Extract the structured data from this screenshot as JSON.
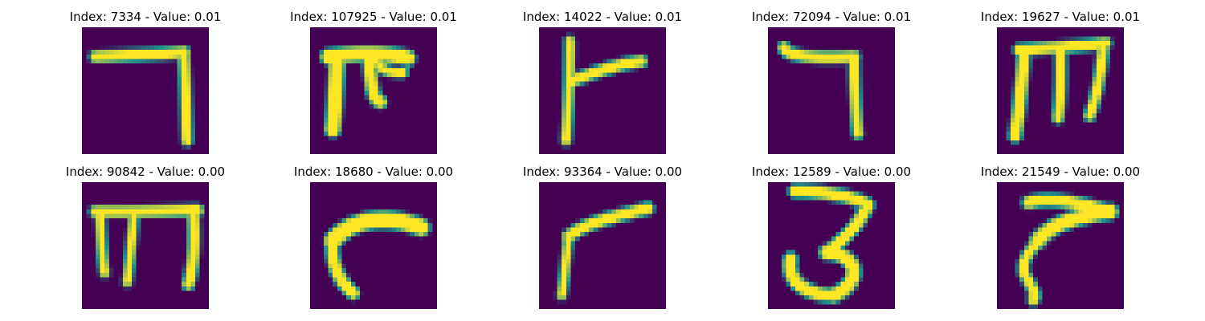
{
  "colors": {
    "background": "#440154",
    "mid": "#21918c",
    "stroke": "#fde725"
  },
  "samples": [
    {
      "title": "Index: 7334 - Value: 0.01",
      "strokes": [
        {
          "w": 2.2,
          "pts": [
            [
              3,
              6.5
            ],
            [
              10,
              6.2
            ],
            [
              17,
              6
            ],
            [
              22.5,
              5.5
            ]
          ]
        },
        {
          "w": 2.0,
          "pts": [
            [
              22.5,
              5.5
            ],
            [
              22.8,
              12
            ],
            [
              23,
              18
            ],
            [
              23.2,
              25
            ]
          ]
        }
      ]
    },
    {
      "title": "Index: 107925 - Value: 0.01",
      "strokes": [
        {
          "w": 3.0,
          "pts": [
            [
              4,
              6.5
            ],
            [
              10,
              5.7
            ],
            [
              16,
              5.5
            ],
            [
              21.5,
              6.8
            ]
          ]
        },
        {
          "w": 3.0,
          "pts": [
            [
              6,
              6.5
            ],
            [
              5.7,
              12
            ],
            [
              5.5,
              18
            ],
            [
              5,
              22.5
            ]
          ]
        },
        {
          "w": 2.4,
          "pts": [
            [
              13,
              7
            ],
            [
              13.5,
              11
            ],
            [
              13.5,
              16
            ],
            [
              15.5,
              16.5
            ]
          ]
        },
        {
          "w": 1.8,
          "pts": [
            [
              14.5,
              7
            ],
            [
              15.5,
              9.5
            ],
            [
              17,
              10
            ],
            [
              20.5,
              10
            ]
          ]
        }
      ]
    },
    {
      "title": "Index: 14022 - Value: 0.01",
      "strokes": [
        {
          "w": 1.8,
          "pts": [
            [
              6.8,
              3
            ],
            [
              6.8,
              10
            ],
            [
              6.5,
              18
            ],
            [
              6,
              25
            ]
          ]
        },
        {
          "w": 2.2,
          "pts": [
            [
              6.8,
              12
            ],
            [
              12,
              10
            ],
            [
              18,
              8
            ],
            [
              22.5,
              7.5
            ]
          ]
        }
      ]
    },
    {
      "title": "Index: 72094 - Value: 0.01",
      "strokes": [
        {
          "w": 2.2,
          "pts": [
            [
              3.5,
              4.5
            ],
            [
              4,
              6.5
            ],
            [
              11,
              7
            ],
            [
              19,
              6.5
            ]
          ]
        },
        {
          "w": 1.9,
          "pts": [
            [
              19,
              6.5
            ],
            [
              19,
              12
            ],
            [
              19.3,
              18
            ],
            [
              19.8,
              23.5
            ]
          ]
        }
      ]
    },
    {
      "title": "Index: 19627 - Value: 0.01",
      "strokes": [
        {
          "w": 2.2,
          "pts": [
            [
              5,
              5
            ],
            [
              12,
              4.5
            ],
            [
              18,
              4.2
            ],
            [
              24,
              3.5
            ]
          ]
        },
        {
          "w": 2.4,
          "pts": [
            [
              6,
              5
            ],
            [
              5.5,
              13
            ],
            [
              4.8,
              19
            ],
            [
              4,
              24
            ]
          ]
        },
        {
          "w": 2.0,
          "pts": [
            [
              14,
              5
            ],
            [
              14.2,
              11
            ],
            [
              14,
              16
            ],
            [
              13.5,
              20
            ]
          ]
        },
        {
          "w": 2.0,
          "pts": [
            [
              23.5,
              4
            ],
            [
              23,
              10
            ],
            [
              22,
              15
            ],
            [
              20.5,
              19.5
            ]
          ]
        }
      ]
    },
    {
      "title": "Index: 90842 - Value: 0.00",
      "strokes": [
        {
          "w": 2.2,
          "pts": [
            [
              3,
              6.5
            ],
            [
              10,
              6.6
            ],
            [
              18,
              6.4
            ],
            [
              25.5,
              6.2
            ]
          ]
        },
        {
          "w": 1.7,
          "pts": [
            [
              4,
              6.5
            ],
            [
              4.2,
              12
            ],
            [
              4.5,
              17
            ],
            [
              5,
              20
            ]
          ]
        },
        {
          "w": 1.7,
          "pts": [
            [
              11.5,
              6.5
            ],
            [
              11,
              13
            ],
            [
              10.5,
              18
            ],
            [
              10,
              22
            ]
          ]
        },
        {
          "w": 2.2,
          "pts": [
            [
              24.5,
              6.2
            ],
            [
              25,
              12
            ],
            [
              24.8,
              18
            ],
            [
              23.5,
              22.5
            ]
          ]
        }
      ]
    },
    {
      "title": "Index: 18680 - Value: 0.00",
      "strokes": [
        {
          "w": 3.4,
          "pts": [
            [
              24.5,
              10
            ],
            [
              17,
              7
            ],
            [
              9,
              8
            ],
            [
              5,
              13
            ]
          ]
        },
        {
          "w": 2.4,
          "pts": [
            [
              5,
              13
            ],
            [
              4.5,
              18
            ],
            [
              6.5,
              22
            ],
            [
              9.5,
              24.5
            ]
          ]
        }
      ]
    },
    {
      "title": "Index: 93364 - Value: 0.00",
      "strokes": [
        {
          "w": 2.3,
          "pts": [
            [
              24,
              5.8
            ],
            [
              17,
              7.5
            ],
            [
              10,
              9
            ],
            [
              6.5,
              12
            ]
          ]
        },
        {
          "w": 1.6,
          "pts": [
            [
              6.5,
              12
            ],
            [
              6,
              17
            ],
            [
              5.5,
              22
            ],
            [
              5,
              25
            ]
          ]
        }
      ]
    },
    {
      "title": "Index: 12589 - Value: 0.00",
      "strokes": [
        {
          "w": 2.4,
          "pts": [
            [
              6,
              2
            ],
            [
              13,
              2
            ],
            [
              20,
              3.5
            ],
            [
              22,
              5
            ]
          ]
        },
        {
          "w": 2.4,
          "pts": [
            [
              22,
              5
            ],
            [
              20,
              10
            ],
            [
              15,
              14
            ],
            [
              13,
              15.5
            ]
          ]
        },
        {
          "w": 2.8,
          "pts": [
            [
              13,
              15.5
            ],
            [
              20,
              16
            ],
            [
              21,
              22
            ],
            [
              14.5,
              25
            ]
          ]
        },
        {
          "w": 2.6,
          "pts": [
            [
              14.5,
              25
            ],
            [
              8,
              25
            ],
            [
              4,
              21.5
            ],
            [
              5,
              17
            ]
          ]
        }
      ]
    },
    {
      "title": "Index: 21549 - Value: 0.00",
      "strokes": [
        {
          "w": 2.4,
          "pts": [
            [
              7,
              4.5
            ],
            [
              12,
              3
            ],
            [
              20,
              5
            ],
            [
              25,
              6.5
            ]
          ]
        },
        {
          "w": 3.0,
          "pts": [
            [
              25,
              6.5
            ],
            [
              18,
              7.5
            ],
            [
              12,
              9
            ],
            [
              9,
              13
            ]
          ]
        },
        {
          "w": 2.0,
          "pts": [
            [
              9,
              13
            ],
            [
              6.5,
              16
            ],
            [
              5.5,
              18
            ],
            [
              6,
              20
            ]
          ]
        },
        {
          "w": 2.0,
          "pts": [
            [
              6,
              20
            ],
            [
              7.5,
              23
            ],
            [
              9,
              25
            ],
            [
              8,
              26
            ]
          ]
        }
      ]
    }
  ]
}
